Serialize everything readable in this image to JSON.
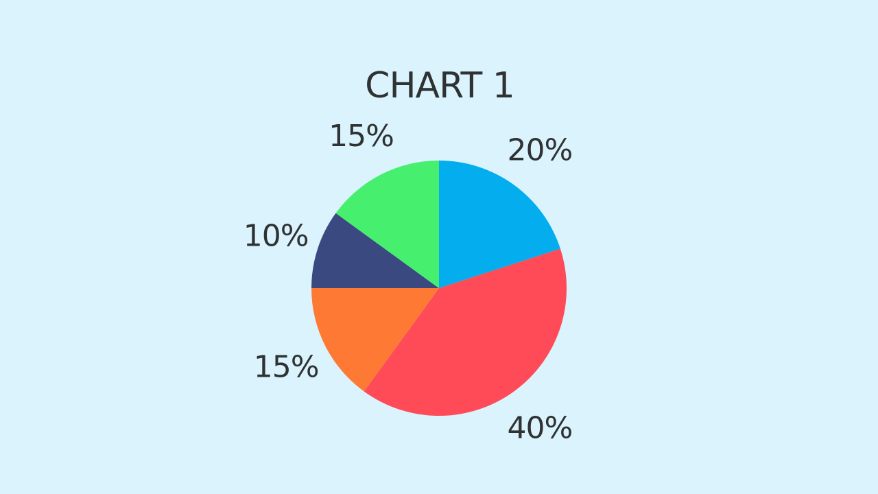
{
  "chart_data": {
    "type": "pie",
    "title": "CHART 1",
    "start_angle_deg": 0,
    "direction": "clockwise",
    "slices": [
      {
        "value": 20,
        "label": "20%",
        "color": "#03adee"
      },
      {
        "value": 40,
        "label": "40%",
        "color": "#fe4b57"
      },
      {
        "value": 15,
        "label": "15%",
        "color": "#fe7a34"
      },
      {
        "value": 10,
        "label": "10%",
        "color": "#3a4a80"
      },
      {
        "value": 15,
        "label": "15%",
        "color": "#47ef6f"
      }
    ]
  }
}
